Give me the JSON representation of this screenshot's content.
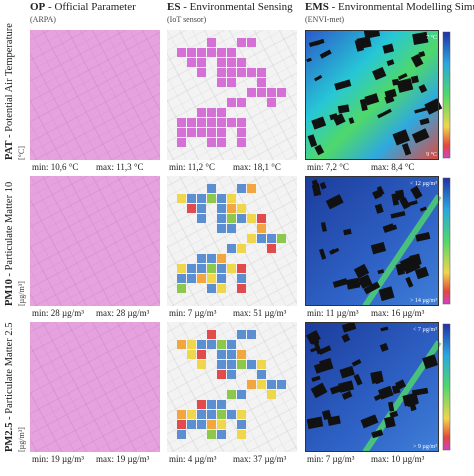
{
  "columns": [
    {
      "code": "OP",
      "name": "- Official Parameter",
      "source": "(ARPA)"
    },
    {
      "code": "ES",
      "name": "- Environmental Sensing",
      "source": "(IoT sensor)"
    },
    {
      "code": "EMS",
      "name": "- Environmental Modelling Simulation",
      "source": "(ENVI-met)"
    }
  ],
  "rows": [
    {
      "code": "PAT",
      "name": "- Potential Air Temperature",
      "unit": "[°C]",
      "cells": [
        {
          "min": "min: 10,6 °C",
          "max": "max: 11,3 °C"
        },
        {
          "min": "min: 11,2 °C",
          "max": "max: 18,1 °C"
        },
        {
          "min": "min: 7,2 °C",
          "max": "max: 8,4 °C"
        }
      ],
      "scale": {
        "top": "7 °C",
        "bottom": "9 °C"
      }
    },
    {
      "code": "PM10",
      "name": "- Particulate Matter 10",
      "unit": "[µg/m³]",
      "cells": [
        {
          "min": "min: 28 µg/m³",
          "max": "max: 28 µg/m³"
        },
        {
          "min": "min: 7 µg/m³",
          "max": "max: 51 µg/m³"
        },
        {
          "min": "min: 11 µg/m³",
          "max": "max: 16 µg/m³"
        }
      ],
      "scale": {
        "top": "< 12 µg/m³",
        "bottom": "> 14 µg/m³"
      }
    },
    {
      "code": "PM2.5",
      "name": "- Particulate Matter 2.5",
      "unit": "[µg/m³]",
      "cells": [
        {
          "min": "min: 19 µg/m³",
          "max": "max: 19 µg/m³"
        },
        {
          "min": "min: 4 µg/m³",
          "max": "max: 37 µg/m³"
        },
        {
          "min": "min: 7 µg/m³",
          "max": "max: 10 µg/m³"
        }
      ],
      "scale": {
        "top": "< 7 µg/m³",
        "bottom": "> 9 µg/m³"
      }
    }
  ]
}
